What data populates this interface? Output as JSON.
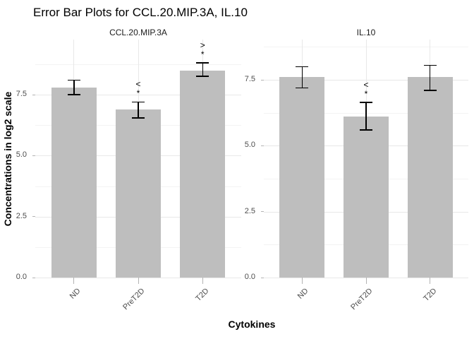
{
  "title": "Error Bar Plots for CCL.20.MIP.3A, IL.10",
  "colors": {
    "background": "#ffffff",
    "bar_fill": "#bebebe",
    "error_bar": "#000000",
    "grid_major": "#e8e8e8",
    "grid_minor": "#f3f3f3",
    "axis_text": "#4d4d4d",
    "tick_mark": "#b3b3b3",
    "strip_text": "#1a1a1a",
    "title_text": "#000000"
  },
  "chart_data": {
    "type": "bar",
    "title": "Error Bar Plots for CCL.20.MIP.3A, IL.10",
    "xlabel": "Cytokines",
    "ylabel": "Concentrations in log2 scale",
    "categories": [
      "ND",
      "PreT2D",
      "T2D"
    ],
    "yticks": [
      0.0,
      2.5,
      5.0,
      7.5
    ],
    "ytick_labels": [
      "0.0",
      "2.5",
      "5.0",
      "7.5"
    ],
    "grid": true,
    "legend": "none",
    "error_bars": true,
    "panels": [
      {
        "title": "CCL.20.MIP.3A",
        "ylim": [
          0,
          9.76
        ],
        "values": [
          7.8,
          6.9,
          8.5
        ],
        "error_low": [
          7.5,
          6.55,
          8.25
        ],
        "error_high": [
          8.1,
          7.2,
          8.8
        ],
        "annotations": [
          "",
          "< *",
          "> *"
        ]
      },
      {
        "title": "IL.10",
        "ylim": [
          0,
          9.03
        ],
        "values": [
          7.6,
          6.1,
          7.6
        ],
        "error_low": [
          7.2,
          5.6,
          7.1
        ],
        "error_high": [
          8.0,
          6.65,
          8.05
        ],
        "annotations": [
          "",
          "< *",
          ""
        ]
      }
    ]
  }
}
